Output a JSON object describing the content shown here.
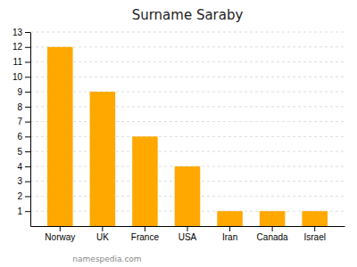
{
  "chart_data": {
    "type": "bar",
    "title": "Surname Saraby",
    "categories": [
      "Norway",
      "UK",
      "France",
      "USA",
      "Iran",
      "Canada",
      "Israel"
    ],
    "values": [
      12,
      9,
      6,
      4,
      1,
      1,
      1
    ],
    "color": "#FFA800",
    "ylim": [
      0,
      13
    ],
    "yticks": [
      1,
      2,
      3,
      4,
      5,
      6,
      7,
      8,
      9,
      10,
      11,
      12,
      13
    ],
    "grid": true,
    "annotation": "namespedia.com"
  }
}
